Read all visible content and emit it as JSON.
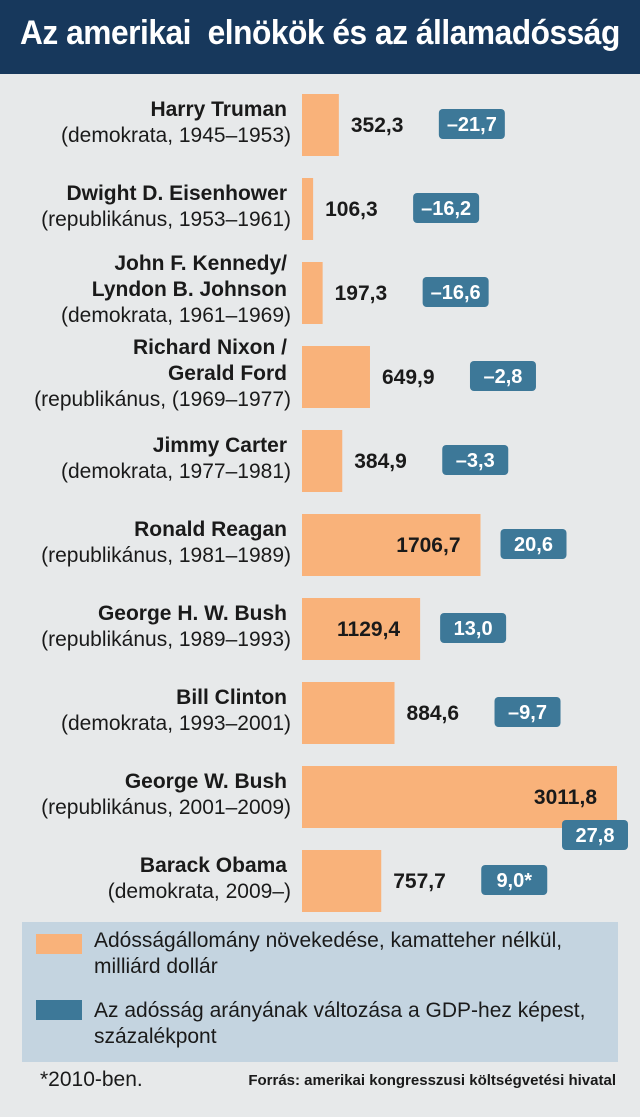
{
  "title": "Az amerikai  elnökök és az államadósság",
  "chart_data": {
    "type": "bar",
    "orientation": "horizontal",
    "categories": [
      {
        "name": "Harry Truman",
        "detail": "(demokrata, 1945–1953)"
      },
      {
        "name": "Dwight D. Eisenhower",
        "detail": "(republikánus, 1953–1961)"
      },
      {
        "name": "John F. Kennedy/ Lyndon B. Johnson",
        "detail": "(demokrata, 1961–1969)"
      },
      {
        "name": "Richard Nixon / Gerald Ford",
        "detail": "(republikánus, (1969–1977)"
      },
      {
        "name": "Jimmy Carter",
        "detail": "(demokrata, 1977–1981)"
      },
      {
        "name": "Ronald Reagan",
        "detail": "(republikánus, 1981–1989)"
      },
      {
        "name": "George H. W. Bush",
        "detail": "(republikánus, 1989–1993)"
      },
      {
        "name": "Bill Clinton",
        "detail": "(demokrata, 1993–2001)"
      },
      {
        "name": "George W. Bush",
        "detail": "(republikánus, 2001–2009)"
      },
      {
        "name": "Barack Obama",
        "detail": "(demokrata, 2009–)"
      }
    ],
    "series": [
      {
        "name": "Adósságállomány növekedése, kamatteher nélkül, milliárd dollár",
        "color": "#f9b27a",
        "values": [
          352.3,
          106.3,
          197.3,
          649.9,
          384.9,
          1706.7,
          1129.4,
          884.6,
          3011.8,
          757.7
        ],
        "labels": [
          "352,3",
          "106,3",
          "197,3",
          "649,9",
          "384,9",
          "1706,7",
          "1129,4",
          "884,6",
          "3011,8",
          "757,7"
        ]
      },
      {
        "name": "Az adósság arányának változása a GDP-hez képest, százalékpont",
        "color": "#3d7898",
        "values": [
          -21.7,
          -16.2,
          -16.6,
          -2.8,
          -3.3,
          20.6,
          13.0,
          -9.7,
          27.8,
          9.0
        ],
        "labels": [
          "–21,7",
          "–16,2",
          "–16,6",
          "–2,8",
          "–3,3",
          "20,6",
          "13,0",
          "–9,7",
          "27,8",
          "9,0*"
        ]
      }
    ]
  },
  "legend": {
    "debt_label": "Adósságállomány növekedése, kamatteher nélkül, milliárd dollár",
    "gdp_label": "Az adósság arányának változása a GDP-hez képest, százalékpont"
  },
  "footnote": "*2010-ben.",
  "source": "Forrás: amerikai kongresszusi költségvetési hivatal"
}
